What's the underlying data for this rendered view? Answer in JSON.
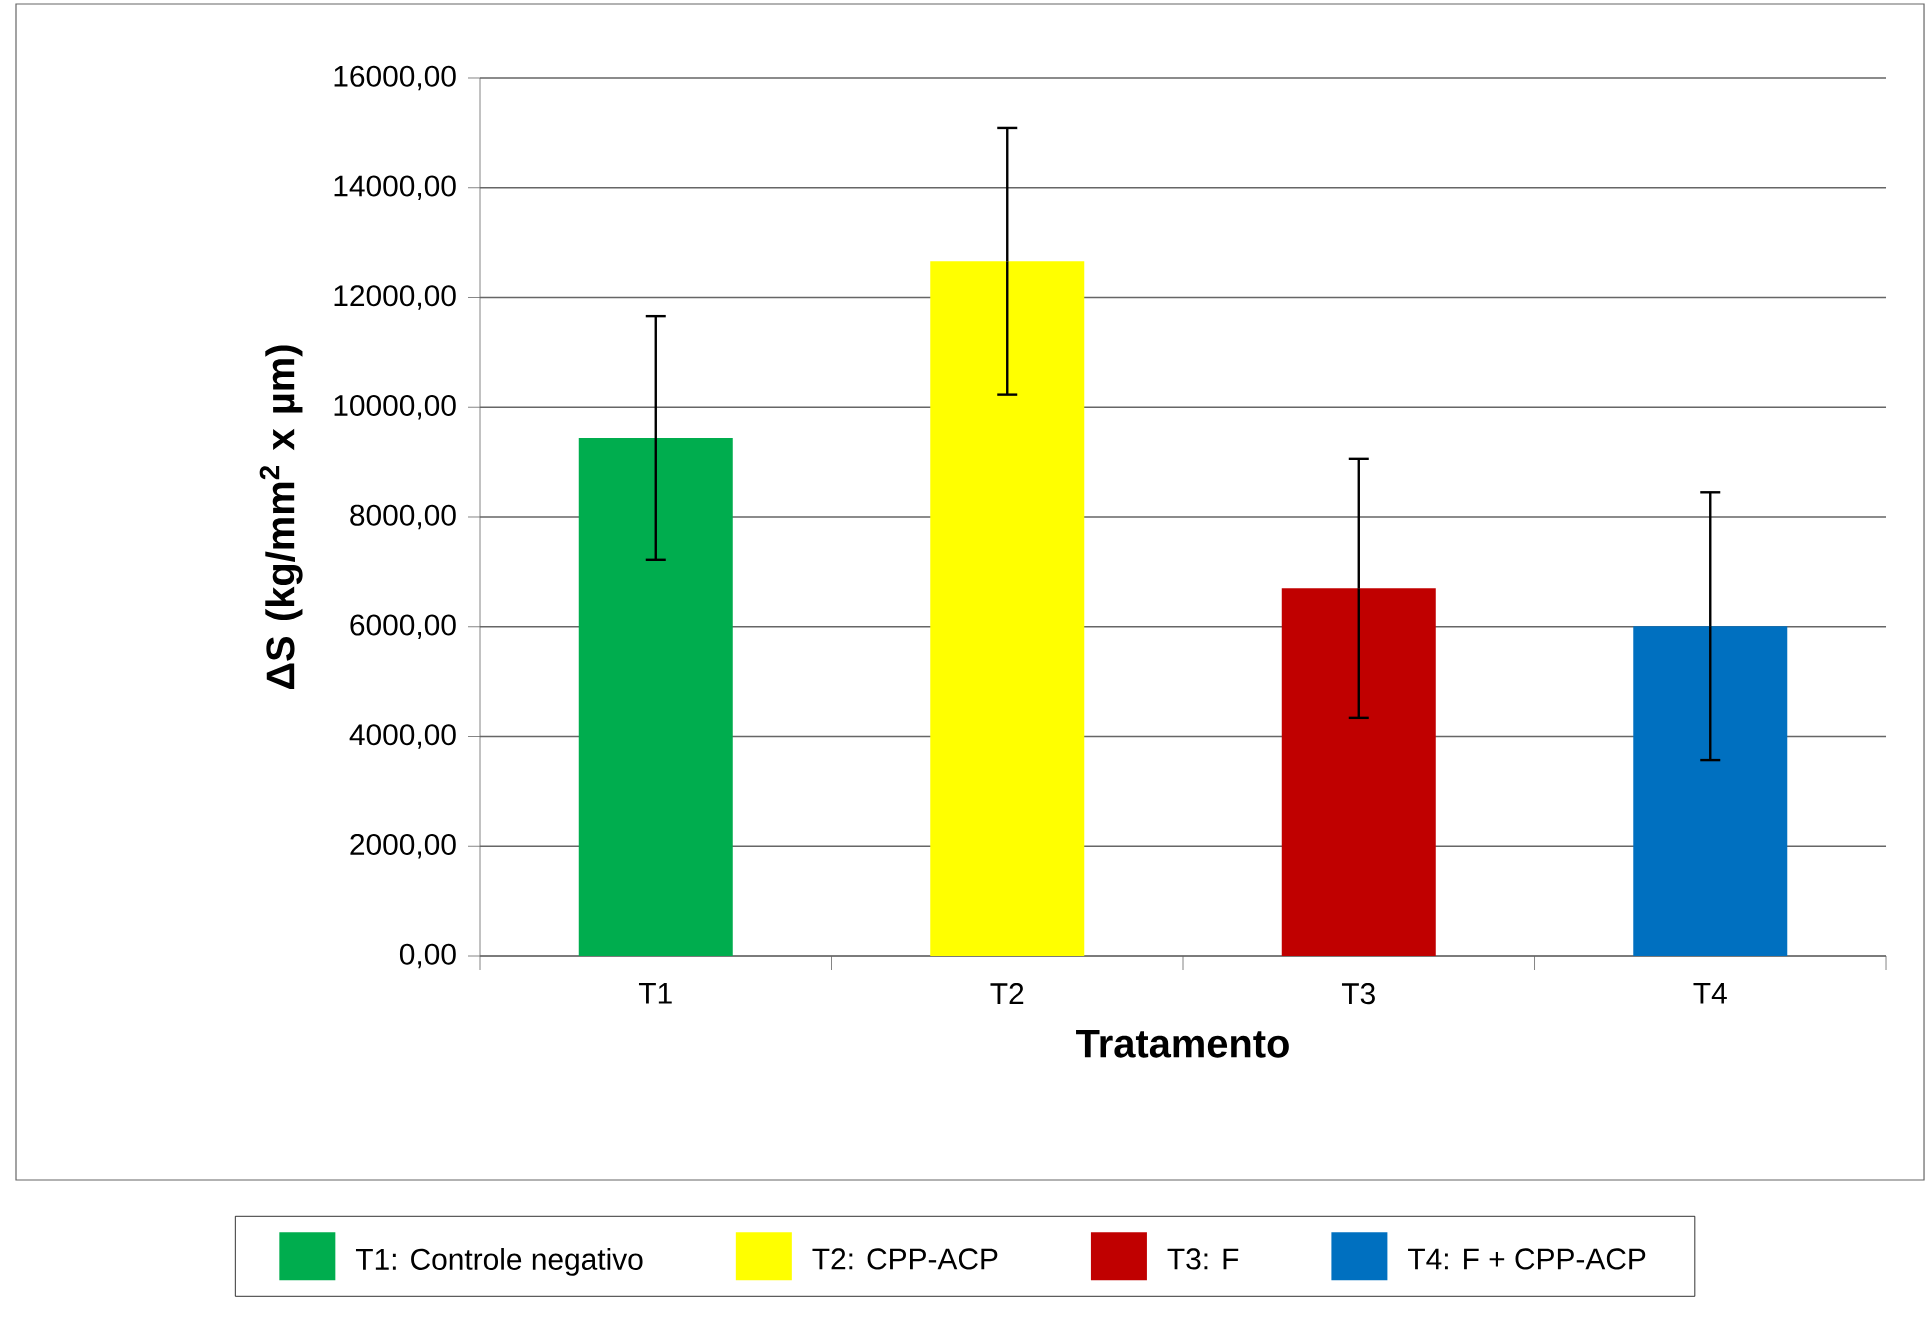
{
  "chart_data": {
    "type": "bar",
    "xlabel": "Tratamento",
    "ylabel": "ΔS (kg/mm$^{2}$ x µm)",
    "categories": [
      "T1",
      "T2",
      "T3",
      "T4"
    ],
    "series": [
      {
        "name": "T1: Controle negativo",
        "color": "#00ad4e",
        "values": [
          9440,
          null,
          null,
          null
        ],
        "errors": [
          2220,
          null,
          null,
          null
        ]
      },
      {
        "name": "T2: CPP-ACP",
        "color": "#ffff00",
        "values": [
          null,
          12660,
          null,
          null
        ],
        "errors": [
          null,
          2430,
          null,
          null
        ]
      },
      {
        "name": "T3: F",
        "color": "#c00000",
        "values": [
          null,
          null,
          6700,
          null
        ],
        "errors": [
          null,
          null,
          2360,
          null
        ]
      },
      {
        "name": "T4: F + CPP-ACP",
        "color": "#0070c0",
        "values": [
          null,
          null,
          null,
          6010
        ],
        "errors": [
          null,
          null,
          null,
          2440
        ]
      }
    ],
    "ylim": [
      0,
      16000
    ],
    "yticks": [
      {
        "value": 0,
        "label": "0,00"
      },
      {
        "value": 2000,
        "label": "2000,00"
      },
      {
        "value": 4000,
        "label": "4000,00"
      },
      {
        "value": 6000,
        "label": "6000,00"
      },
      {
        "value": 8000,
        "label": "8000,00"
      },
      {
        "value": 10000,
        "label": "10000,00"
      },
      {
        "value": 12000,
        "label": "12000,00"
      },
      {
        "value": 14000,
        "label": "14000,00"
      },
      {
        "value": 16000,
        "label": "16000,00"
      }
    ],
    "grid": "y",
    "legend": "bottom"
  }
}
